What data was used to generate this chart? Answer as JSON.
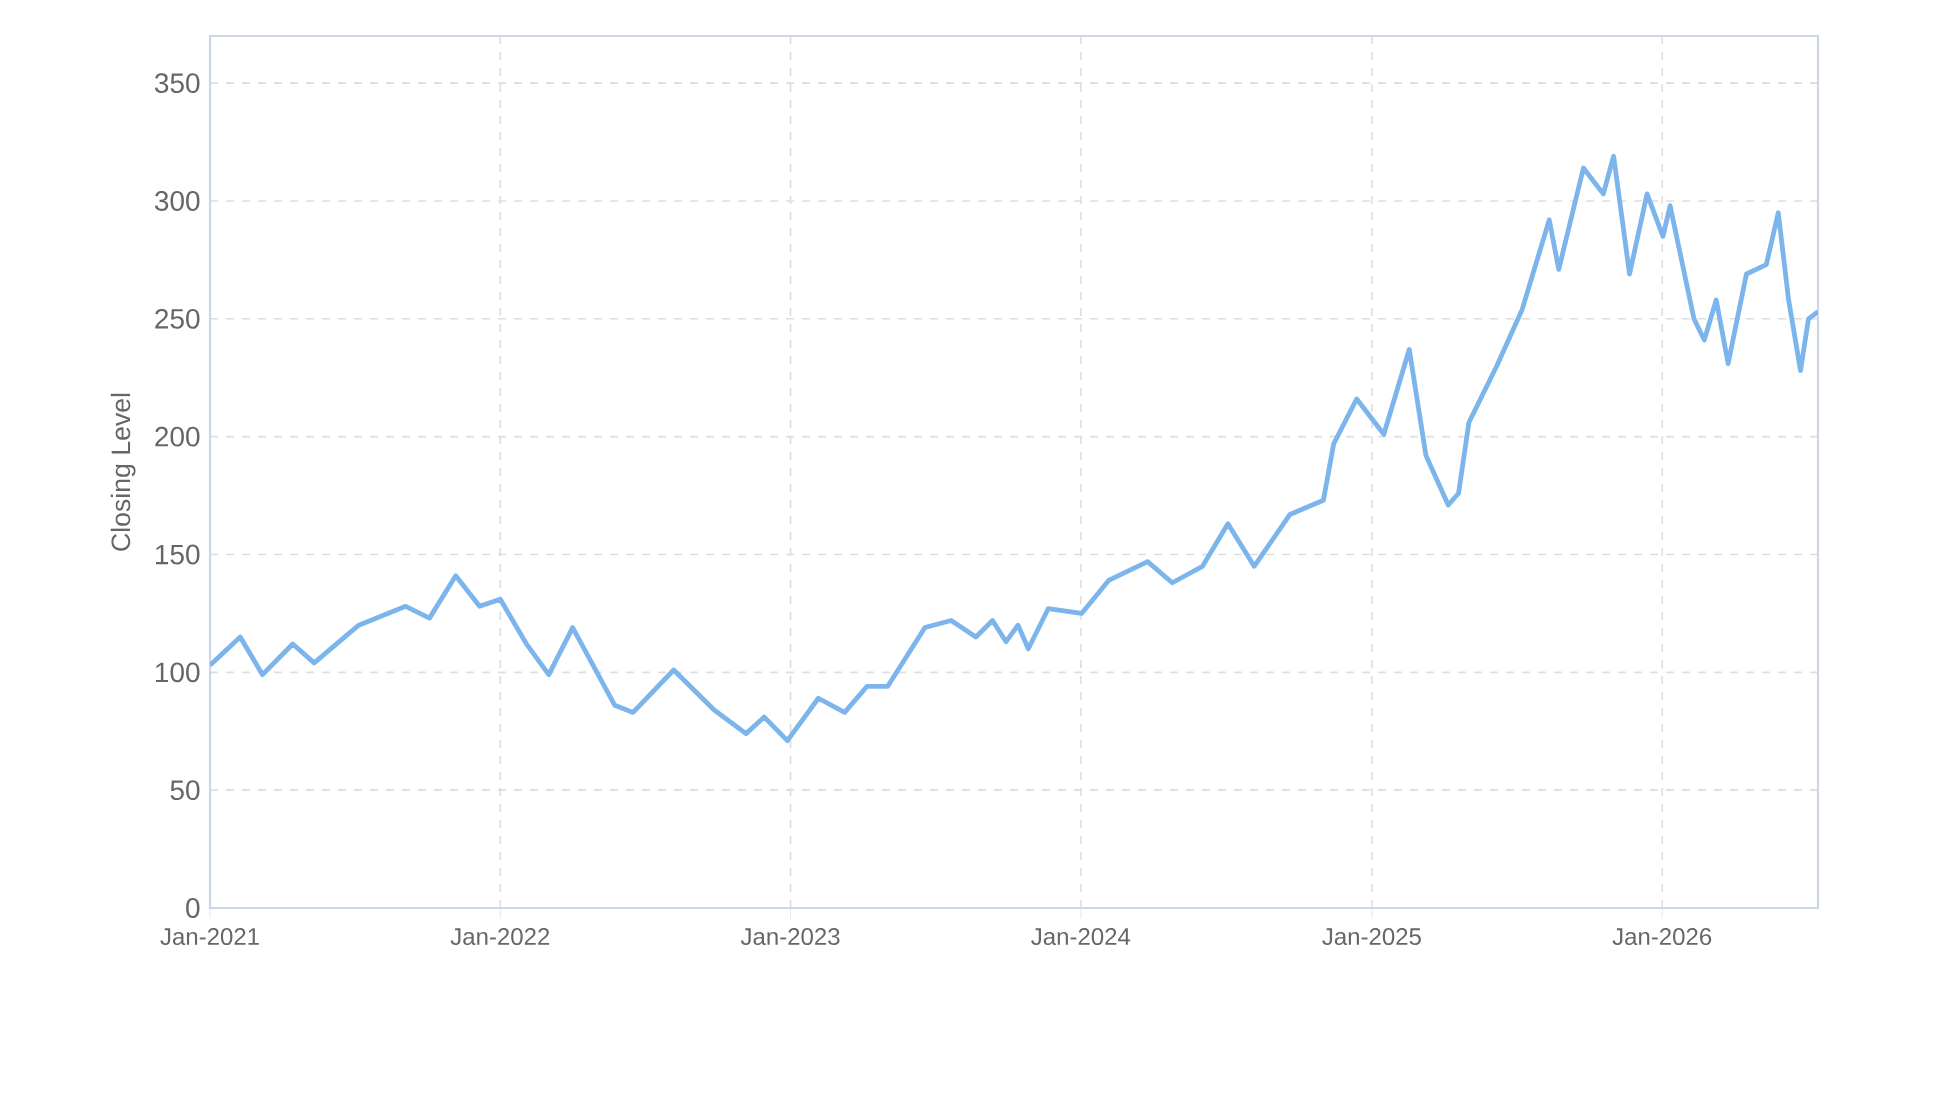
{
  "chart_data": {
    "type": "line",
    "ylabel": "Closing Level",
    "xlim": [
      "2021-01-01",
      "2026-07-16"
    ],
    "xticks": [
      {
        "value": "2021-01-01",
        "label": "Jan-2021"
      },
      {
        "value": "2022-01-01",
        "label": "Jan-2022"
      },
      {
        "value": "2023-01-01",
        "label": "Jan-2023"
      },
      {
        "value": "2024-01-01",
        "label": "Jan-2024"
      },
      {
        "value": "2025-01-01",
        "label": "Jan-2025"
      },
      {
        "value": "2026-01-01",
        "label": "Jan-2026"
      }
    ],
    "ylim": [
      0,
      370
    ],
    "yticks": [
      0,
      50,
      100,
      150,
      200,
      250,
      300,
      350
    ],
    "grid": true,
    "marker": "none",
    "line_style": "solid",
    "series": [
      {
        "color": "#7cb5ec",
        "x": [
          "2021-01-01",
          "2021-02-08",
          "2021-03-08",
          "2021-04-15",
          "2021-05-12",
          "2021-07-07",
          "2021-09-04",
          "2021-10-04",
          "2021-11-06",
          "2021-12-06",
          "2022-01-01",
          "2022-02-03",
          "2022-03-03",
          "2022-04-02",
          "2022-05-25",
          "2022-06-17",
          "2022-08-07",
          "2022-09-27",
          "2022-11-06",
          "2022-11-29",
          "2022-12-28",
          "2023-02-05",
          "2023-03-10",
          "2023-04-07",
          "2023-05-03",
          "2023-06-19",
          "2023-07-22",
          "2023-08-22",
          "2023-09-12",
          "2023-09-29",
          "2023-10-14",
          "2023-10-27",
          "2023-11-21",
          "2024-01-02",
          "2024-02-05",
          "2024-03-25",
          "2024-04-25",
          "2024-06-02",
          "2024-07-04",
          "2024-08-06",
          "2024-09-20",
          "2024-11-01",
          "2024-11-14",
          "2024-12-13",
          "2025-01-16",
          "2025-02-17",
          "2025-03-10",
          "2025-04-07",
          "2025-04-20",
          "2025-05-03",
          "2025-06-07",
          "2025-07-09",
          "2025-08-12",
          "2025-08-24",
          "2025-09-24",
          "2025-10-19",
          "2025-11-01",
          "2025-11-21",
          "2025-12-13",
          "2026-01-02",
          "2026-01-11",
          "2026-02-10",
          "2026-02-23",
          "2026-03-10",
          "2026-03-25",
          "2026-04-17",
          "2026-05-12",
          "2026-05-27",
          "2026-06-09",
          "2026-06-24",
          "2026-07-04",
          "2026-07-16"
        ],
        "values": [
          103,
          115,
          99,
          112,
          104,
          120,
          128,
          123,
          141,
          128,
          131,
          112,
          99,
          119,
          86,
          83,
          101,
          84,
          74,
          81,
          71,
          89,
          83,
          94,
          94,
          119,
          122,
          115,
          122,
          113,
          120,
          110,
          127,
          125,
          139,
          147,
          138,
          145,
          163,
          145,
          167,
          173,
          197,
          216,
          201,
          237,
          192,
          171,
          176,
          206,
          230,
          254,
          292,
          271,
          314,
          303,
          319,
          269,
          303,
          285,
          298,
          250,
          241,
          258,
          231,
          269,
          273,
          295,
          258,
          228,
          250,
          253
        ]
      }
    ]
  }
}
